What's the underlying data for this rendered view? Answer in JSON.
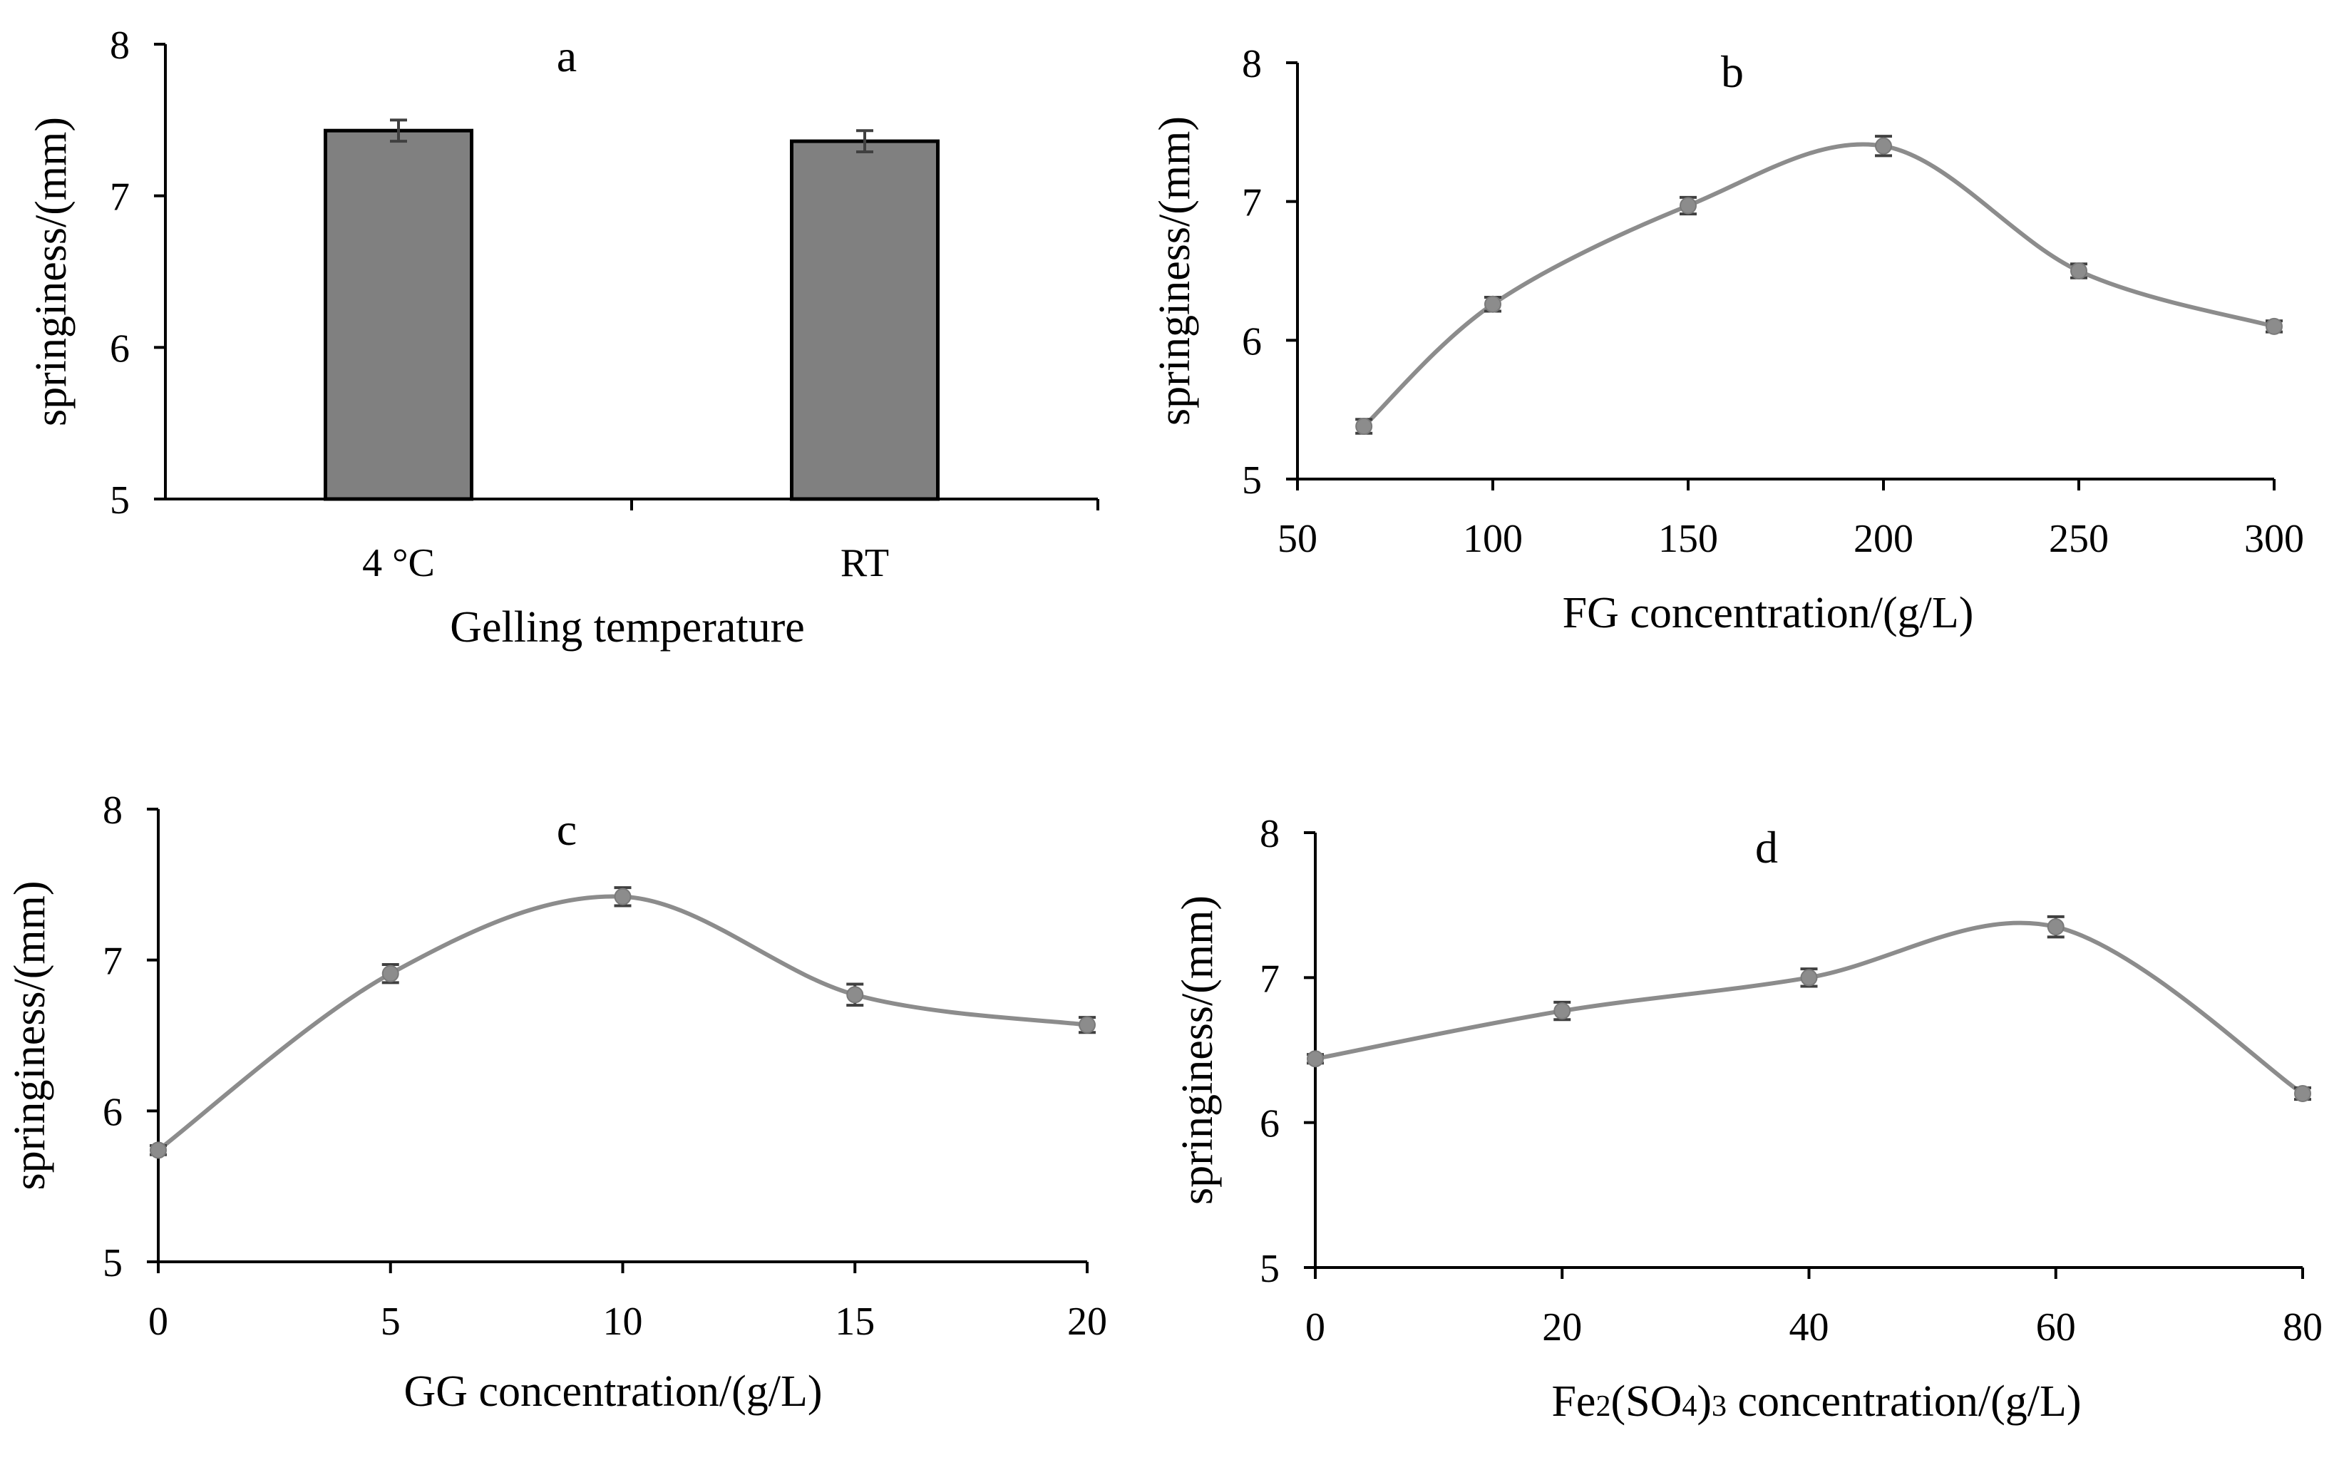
{
  "chart_data": [
    {
      "id": "a",
      "type": "bar",
      "panel_label": "a",
      "categories": [
        "4 °C",
        "RT"
      ],
      "values": [
        7.43,
        7.36
      ],
      "errors": [
        0.07,
        0.07
      ],
      "xlabel": "Gelling  temperature",
      "ylabel": "springiness/(mm)",
      "ylim": [
        5,
        8
      ],
      "yticks": [
        5,
        6,
        7,
        8
      ],
      "grid": false
    },
    {
      "id": "b",
      "type": "line",
      "panel_label": "b",
      "x": [
        67,
        100,
        150,
        200,
        250,
        300
      ],
      "values": [
        5.38,
        6.26,
        6.97,
        7.4,
        6.5,
        6.1
      ],
      "errors": [
        0.05,
        0.05,
        0.06,
        0.07,
        0.05,
        0.04
      ],
      "xlabel": "FG concentration/(g/L)",
      "ylabel": "springiness/(mm)",
      "xlim": [
        50,
        300
      ],
      "xticks": [
        50,
        100,
        150,
        200,
        250,
        300
      ],
      "ylim": [
        5,
        8
      ],
      "yticks": [
        5,
        6,
        7,
        8
      ],
      "grid": false
    },
    {
      "id": "c",
      "type": "line",
      "panel_label": "c",
      "x": [
        0,
        5,
        10,
        15,
        20
      ],
      "values": [
        5.74,
        6.91,
        7.42,
        6.77,
        6.57
      ],
      "errors": [
        0.03,
        0.06,
        0.06,
        0.07,
        0.05
      ],
      "xlabel": "GG concentration/(g/L)",
      "ylabel": "springiness/(mm)",
      "xlim": [
        0,
        20
      ],
      "xticks": [
        0,
        5,
        10,
        15,
        20
      ],
      "ylim": [
        5,
        8
      ],
      "yticks": [
        5,
        6,
        7,
        8
      ],
      "grid": false
    },
    {
      "id": "d",
      "type": "line",
      "panel_label": "d",
      "x": [
        0,
        20,
        40,
        60,
        80
      ],
      "values": [
        6.44,
        6.77,
        7.0,
        7.35,
        6.2
      ],
      "errors": [
        0.03,
        0.06,
        0.06,
        0.07,
        0.04
      ],
      "xlabel": "Fe2(SO4)3 concentration/(g/L)",
      "ylabel": "springiness/(mm)",
      "xlim": [
        0,
        80
      ],
      "xticks": [
        0,
        20,
        40,
        60,
        80
      ],
      "ylim": [
        5,
        8
      ],
      "yticks": [
        5,
        6,
        7,
        8
      ],
      "grid": false
    }
  ]
}
